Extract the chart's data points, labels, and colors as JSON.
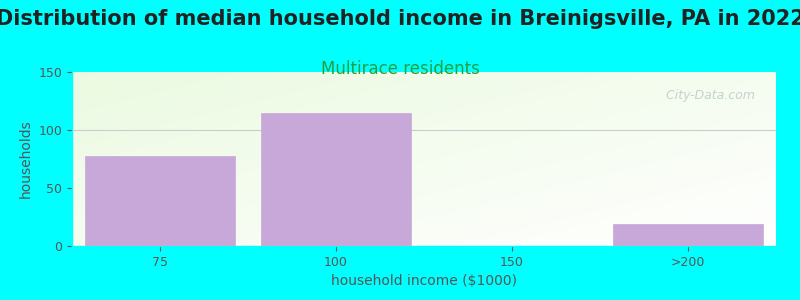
{
  "title": "Distribution of median household income in Breinigsville, PA in 2022",
  "subtitle": "Multirace residents",
  "xlabel": "household income ($1000)",
  "ylabel": "households",
  "categories": [
    "75",
    "100",
    "150",
    ">200"
  ],
  "values": [
    78,
    115,
    0,
    19
  ],
  "bar_color": "#c8a8d8",
  "bar_edge_color": "#c8a8d8",
  "background_color": "#00ffff",
  "plot_bg_topleft": "#e8f5e0",
  "plot_bg_bottomright": "#ffffff",
  "ylim": [
    0,
    150
  ],
  "yticks": [
    0,
    50,
    100,
    150
  ],
  "title_fontsize": 15,
  "subtitle_fontsize": 12,
  "subtitle_color": "#20a040",
  "axis_label_fontsize": 10,
  "tick_fontsize": 9,
  "watermark": " City-Data.com",
  "bar_width": 0.85,
  "bar_positions": [
    0,
    1,
    2,
    3
  ],
  "grid_color": "#cccccc",
  "spine_color": "#00ffff",
  "tick_color": "#555555",
  "label_color": "#555555"
}
